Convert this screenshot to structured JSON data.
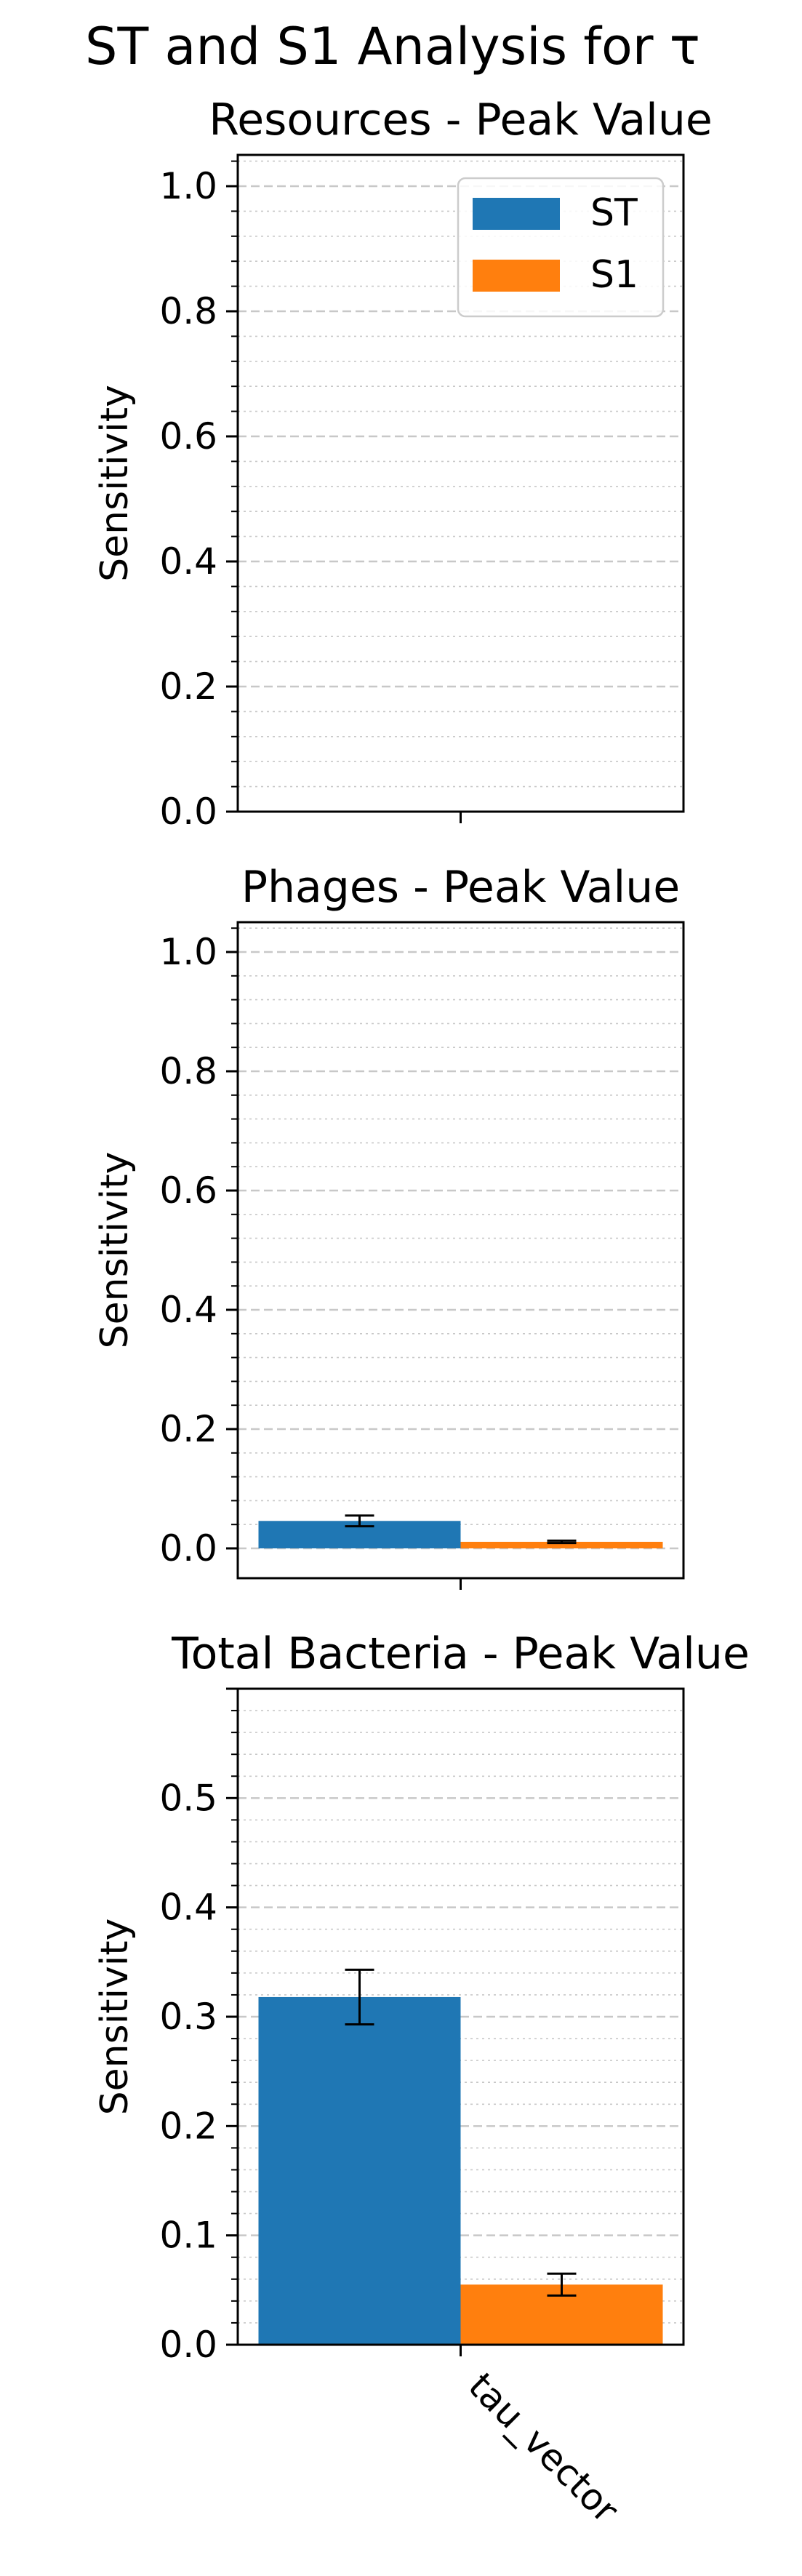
{
  "figure": {
    "title": "ST and S1 Analysis for τ"
  },
  "legend": {
    "placement": "upper-right",
    "entries": [
      {
        "name": "ST",
        "color": "#1f77b4"
      },
      {
        "name": "S1",
        "color": "#ff7f0e"
      }
    ]
  },
  "chart_data": [
    {
      "type": "bar",
      "title": "Resources - Peak Value",
      "xlabel": "",
      "ylabel": "Sensitivity",
      "categories": [
        "tau_vector"
      ],
      "ylim": [
        0,
        1.05
      ],
      "yticks": [
        "0.0",
        "0.2",
        "0.4",
        "0.6",
        "0.8",
        "1.0"
      ],
      "show_xticklabels": false,
      "grid": true,
      "series": [
        {
          "name": "ST",
          "values": [
            0.0
          ],
          "errors": [
            0.0
          ]
        },
        {
          "name": "S1",
          "values": [
            0.0
          ],
          "errors": [
            0.0
          ]
        }
      ]
    },
    {
      "type": "bar",
      "title": "Phages - Peak Value",
      "xlabel": "",
      "ylabel": "Sensitivity",
      "categories": [
        "tau_vector"
      ],
      "ylim": [
        -0.05,
        1.05
      ],
      "yticks": [
        "0.0",
        "0.2",
        "0.4",
        "0.6",
        "0.8",
        "1.0"
      ],
      "show_xticklabels": false,
      "grid": true,
      "series": [
        {
          "name": "ST",
          "values": [
            0.046
          ],
          "errors": [
            0.009
          ]
        },
        {
          "name": "S1",
          "values": [
            0.011
          ],
          "errors": [
            0.002
          ]
        }
      ]
    },
    {
      "type": "bar",
      "title": "Total Bacteria - Peak Value",
      "xlabel": "",
      "ylabel": "Sensitivity",
      "categories": [
        "tau_vector"
      ],
      "ylim": [
        0,
        0.6
      ],
      "yticks": [
        "0.0",
        "0.1",
        "0.2",
        "0.3",
        "0.4",
        "0.5"
      ],
      "show_xticklabels": true,
      "grid": true,
      "series": [
        {
          "name": "ST",
          "values": [
            0.318
          ],
          "errors": [
            0.025
          ]
        },
        {
          "name": "S1",
          "values": [
            0.055
          ],
          "errors": [
            0.01
          ]
        }
      ]
    }
  ]
}
